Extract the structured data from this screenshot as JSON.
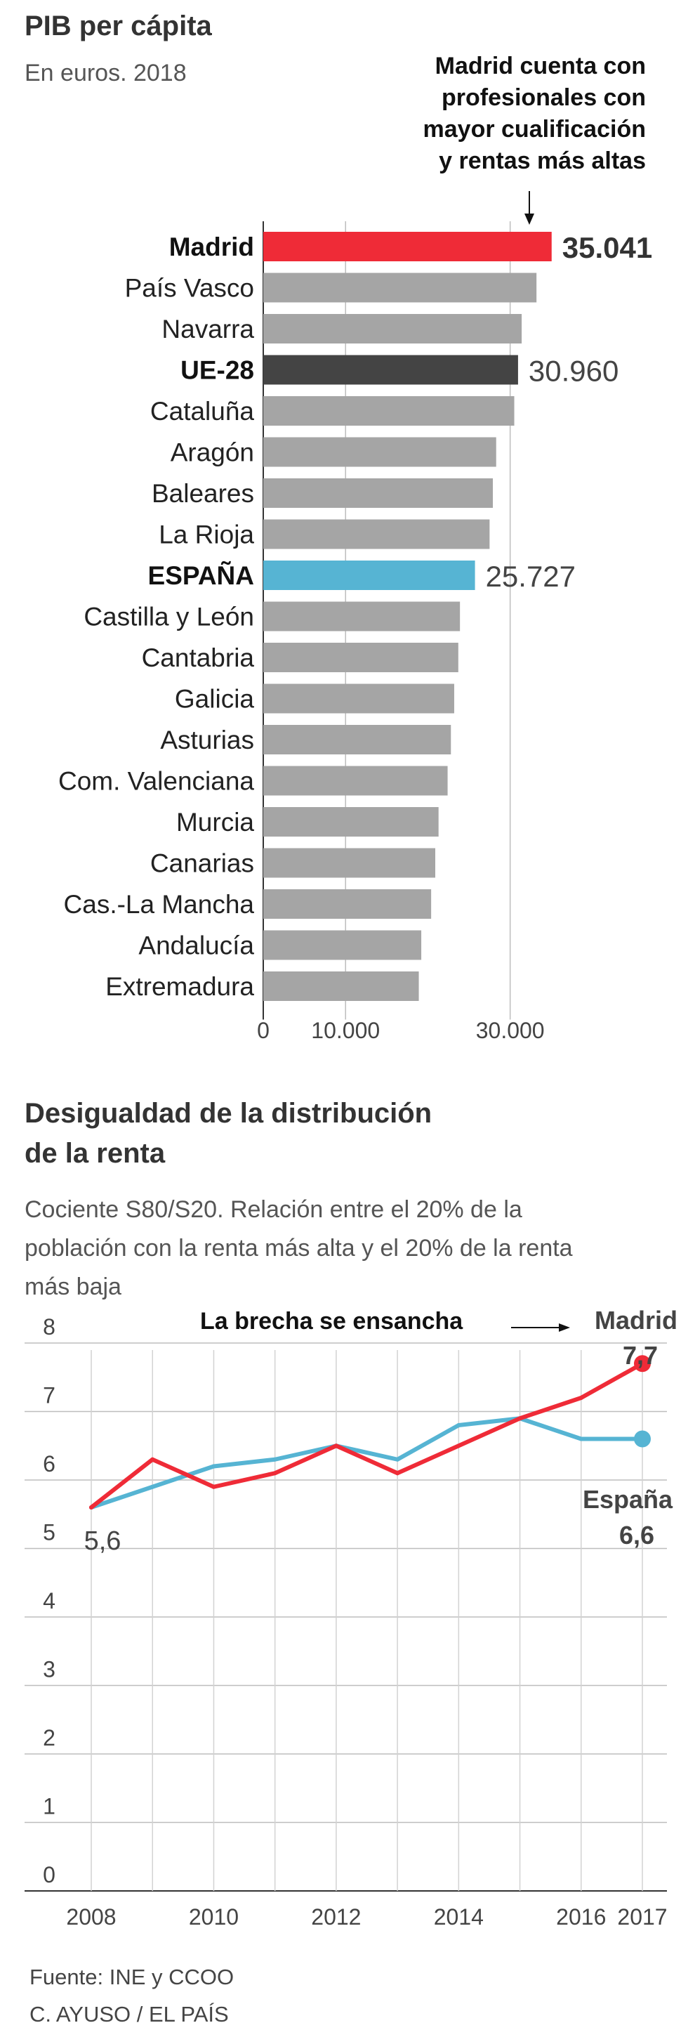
{
  "chart_data": [
    {
      "type": "bar",
      "orientation": "horizontal",
      "title": "PIB per cápita",
      "subtitle": "En euros. 2018",
      "annotation": {
        "lines": [
          "Madrid cuenta con",
          "profesionales con",
          "mayor cualificación",
          "y rentas más altas"
        ],
        "target": "Madrid"
      },
      "categories": [
        "Madrid",
        "País Vasco",
        "Navarra",
        "UE-28",
        "Cataluña",
        "Aragón",
        "Baleares",
        "La Rioja",
        "ESPAÑA",
        "Castilla y León",
        "Cantabria",
        "Galicia",
        "Asturias",
        "Com. Valenciana",
        "Murcia",
        "Canarias",
        "Cas.-La Mancha",
        "Andalucía",
        "Extremadura"
      ],
      "values": [
        35041,
        33200,
        31400,
        30960,
        30500,
        28300,
        27900,
        27500,
        25727,
        23900,
        23700,
        23200,
        22800,
        22400,
        21300,
        20900,
        20400,
        19200,
        18900
      ],
      "highlight": {
        "Madrid": {
          "color": "#ef2b37",
          "label": "35.041",
          "label_bold": true
        },
        "UE-28": {
          "color": "#444444",
          "label": "30.960",
          "label_bold": false
        },
        "ESPAÑA": {
          "color": "#56b4d3",
          "label": "25.727",
          "label_bold": false
        }
      },
      "bold_categories": [
        "Madrid",
        "UE-28",
        "ESPAÑA"
      ],
      "default_color": "#a5a5a5",
      "xlim": [
        0,
        36000
      ],
      "xticks": [
        0,
        10000,
        30000
      ],
      "xtick_labels": [
        "0",
        "10.000",
        "30.000"
      ],
      "grid": true
    },
    {
      "type": "line",
      "title_lines": [
        "Desigualdad de la distribución",
        "de la renta"
      ],
      "subtitle_lines": [
        "Cociente S80/S20. Relación entre el 20% de la",
        "población con la renta más alta y el 20% de la renta",
        "más baja"
      ],
      "annotation": "La brecha se ensancha",
      "x": [
        2008,
        2009,
        2010,
        2011,
        2012,
        2013,
        2014,
        2015,
        2016,
        2017
      ],
      "xtick_labels": [
        "2008",
        "2010",
        "2012",
        "2014",
        "2016",
        "2017"
      ],
      "xtick_values": [
        2008,
        2010,
        2012,
        2014,
        2016,
        2017
      ],
      "ylim": [
        0,
        8
      ],
      "yticks": [
        0,
        1,
        2,
        3,
        4,
        5,
        6,
        7,
        8
      ],
      "series": [
        {
          "name": "Madrid",
          "color": "#ef2b37",
          "values": [
            5.6,
            6.3,
            5.9,
            6.1,
            6.5,
            6.1,
            6.5,
            6.9,
            7.2,
            7.7
          ],
          "end_label": "7,7"
        },
        {
          "name": "España",
          "color": "#56b4d3",
          "values": [
            5.6,
            5.9,
            6.2,
            6.3,
            6.5,
            6.3,
            6.8,
            6.9,
            6.6,
            6.6
          ],
          "end_label": "6,6"
        }
      ],
      "start_label": "5,6",
      "grid": true
    }
  ],
  "footer": {
    "source": "Fuente: INE y CCOO",
    "credit": "C. AYUSO / EL PAÍS"
  }
}
